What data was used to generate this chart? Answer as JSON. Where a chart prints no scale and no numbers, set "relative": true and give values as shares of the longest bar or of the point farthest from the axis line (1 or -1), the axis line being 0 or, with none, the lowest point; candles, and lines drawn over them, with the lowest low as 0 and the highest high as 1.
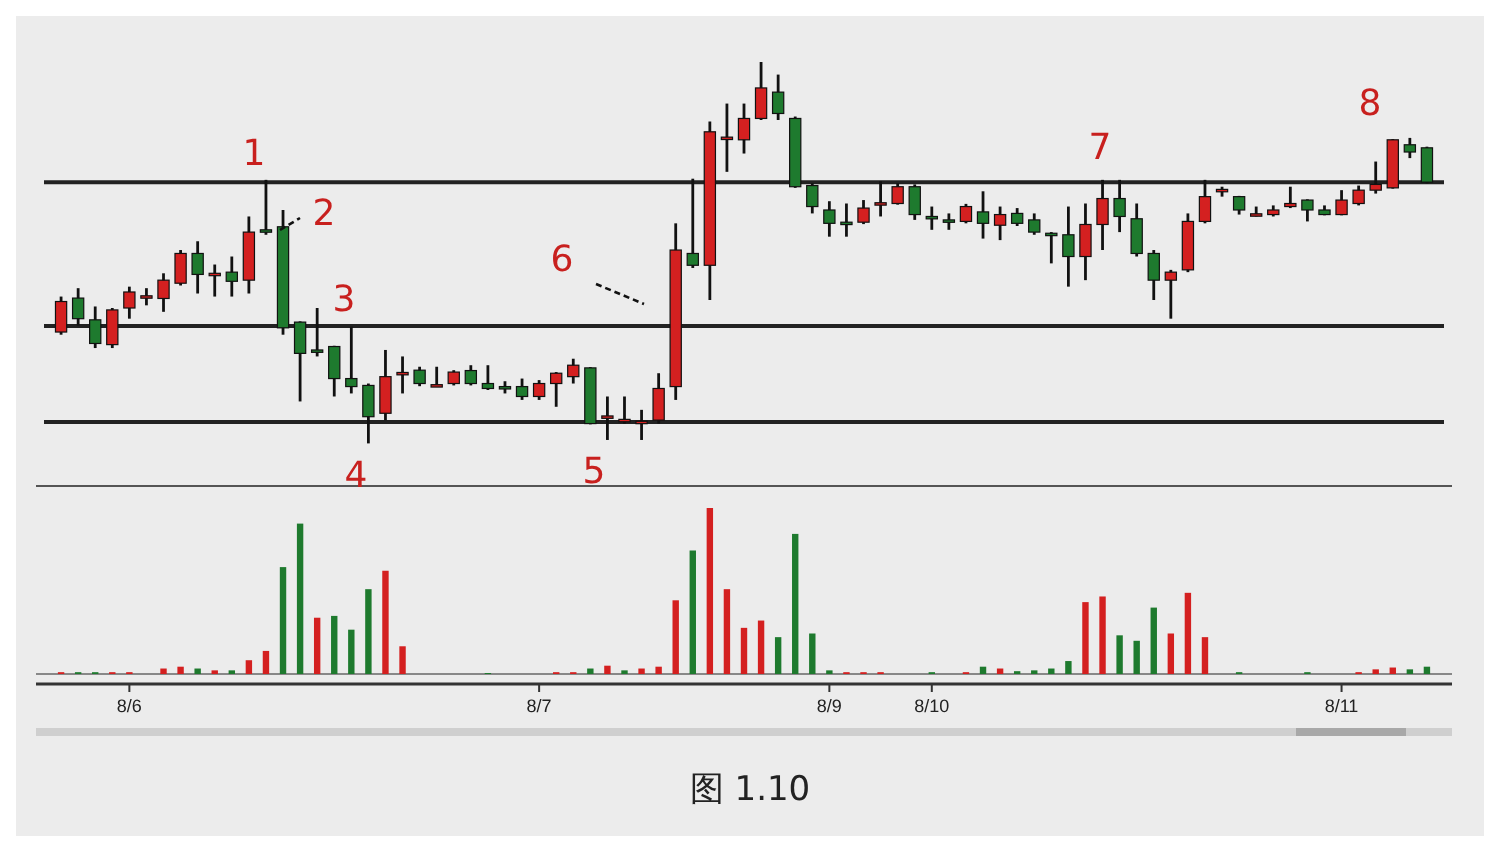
{
  "chart_data": [
    {
      "type": "candlestick",
      "relative": true,
      "tick_labels": false,
      "categories": [
        null,
        null,
        null,
        null,
        null,
        null,
        null,
        null,
        null,
        null,
        null,
        null,
        null,
        null,
        null,
        null,
        null,
        null,
        null,
        null,
        null,
        null,
        null,
        null,
        null,
        null,
        null,
        null,
        null,
        null,
        null,
        null,
        null,
        null,
        null,
        null,
        null,
        null,
        null,
        null,
        null,
        null,
        null,
        null,
        null,
        null,
        null,
        null,
        null,
        null,
        null,
        null,
        null,
        null,
        null,
        null,
        null,
        null,
        null,
        null,
        null,
        null,
        null,
        null,
        null,
        null,
        null,
        null,
        null,
        null,
        null,
        null,
        null,
        null,
        null,
        null,
        null,
        null,
        null,
        null,
        null
      ],
      "ohlc": [
        [
          0.292,
          0.385,
          0.285,
          0.372
        ],
        [
          0.381,
          0.407,
          0.309,
          0.327
        ],
        [
          0.324,
          0.359,
          0.25,
          0.262
        ],
        [
          0.259,
          0.355,
          0.25,
          0.35
        ],
        [
          0.355,
          0.411,
          0.327,
          0.397
        ],
        [
          0.385,
          0.407,
          0.362,
          0.387
        ],
        [
          0.38,
          0.446,
          0.345,
          0.428
        ],
        [
          0.42,
          0.507,
          0.414,
          0.498
        ],
        [
          0.498,
          0.53,
          0.393,
          0.443
        ],
        [
          0.443,
          0.469,
          0.385,
          0.446
        ],
        [
          0.449,
          0.49,
          0.385,
          0.425
        ],
        [
          0.428,
          0.595,
          0.393,
          0.554
        ],
        [
          0.56,
          0.691,
          0.547,
          0.554
        ],
        [
          0.568,
          0.612,
          0.285,
          0.303
        ],
        [
          0.318,
          0.32,
          0.11,
          0.236
        ],
        [
          0.245,
          0.355,
          0.228,
          0.243
        ],
        [
          0.254,
          0.256,
          0.123,
          0.17
        ],
        [
          0.17,
          0.306,
          0.131,
          0.149
        ],
        [
          0.152,
          0.157,
          0,
          0.07
        ],
        [
          0.079,
          0.245,
          0.061,
          0.175
        ],
        [
          0.184,
          0.228,
          0.131,
          0.186
        ],
        [
          0.192,
          0.201,
          0.15,
          0.157
        ],
        [
          0.152,
          0.201,
          0.149,
          0.154
        ],
        [
          0.157,
          0.192,
          0.152,
          0.187
        ],
        [
          0.191,
          0.205,
          0.152,
          0.157
        ],
        [
          0.157,
          0.205,
          0.14,
          0.144
        ],
        [
          0.149,
          0.163,
          0.131,
          0.147
        ],
        [
          0.149,
          0.17,
          0.114,
          0.123
        ],
        [
          0.123,
          0.166,
          0.114,
          0.157
        ],
        [
          0.157,
          0.187,
          0.096,
          0.184
        ],
        [
          0.175,
          0.222,
          0.157,
          0.205
        ],
        [
          0.198,
          0.2,
          0.05,
          0.052
        ],
        [
          0.067,
          0.123,
          0.009,
          0.072
        ],
        [
          0.061,
          0.123,
          0.052,
          0.063
        ],
        [
          0.056,
          0.088,
          0.009,
          0.058
        ],
        [
          0.061,
          0.184,
          0.052,
          0.144
        ],
        [
          0.149,
          0.577,
          0.114,
          0.507
        ],
        [
          0.498,
          0.694,
          0.46,
          0.467
        ],
        [
          0.467,
          0.844,
          0.376,
          0.817
        ],
        [
          0.801,
          0.891,
          0.712,
          0.803
        ],
        [
          0.796,
          0.891,
          0.76,
          0.852
        ],
        [
          0.852,
          1,
          0.848,
          0.932
        ],
        [
          0.921,
          0.967,
          0.848,
          0.865
        ],
        [
          0.852,
          0.857,
          0.67,
          0.673
        ],
        [
          0.676,
          0.682,
          0.603,
          0.621
        ],
        [
          0.612,
          0.635,
          0.542,
          0.577
        ],
        [
          0.58,
          0.629,
          0.542,
          0.578
        ],
        [
          0.58,
          0.638,
          0.575,
          0.617
        ],
        [
          0.629,
          0.687,
          0.595,
          0.631
        ],
        [
          0.629,
          0.682,
          0.626,
          0.673
        ],
        [
          0.673,
          0.679,
          0.586,
          0.6
        ],
        [
          0.595,
          0.621,
          0.56,
          0.593
        ],
        [
          0.586,
          0.603,
          0.56,
          0.584
        ],
        [
          0.582,
          0.628,
          0.577,
          0.621
        ],
        [
          0.607,
          0.661,
          0.537,
          0.577
        ],
        [
          0.572,
          0.621,
          0.533,
          0.6
        ],
        [
          0.603,
          0.617,
          0.57,
          0.577
        ],
        [
          0.586,
          0.603,
          0.547,
          0.554
        ],
        [
          0.551,
          0.554,
          0.472,
          0.549
        ],
        [
          0.547,
          0.621,
          0.411,
          0.49
        ],
        [
          0.49,
          0.629,
          0.428,
          0.574
        ],
        [
          0.574,
          0.691,
          0.507,
          0.642
        ],
        [
          0.642,
          0.691,
          0.554,
          0.595
        ],
        [
          0.589,
          0.629,
          0.49,
          0.498
        ],
        [
          0.498,
          0.507,
          0.376,
          0.428
        ],
        [
          0.428,
          0.455,
          0.327,
          0.449
        ],
        [
          0.455,
          0.603,
          0.449,
          0.582
        ],
        [
          0.582,
          0.691,
          0.577,
          0.647
        ],
        [
          0.664,
          0.673,
          0.647,
          0.666
        ],
        [
          0.647,
          0.649,
          0.6,
          0.612
        ],
        [
          0.6,
          0.621,
          0.595,
          0.602
        ],
        [
          0.6,
          0.624,
          0.595,
          0.612
        ],
        [
          0.621,
          0.673,
          0.617,
          0.629
        ],
        [
          0.638,
          0.64,
          0.582,
          0.612
        ],
        [
          0.612,
          0.624,
          0.598,
          0.6
        ],
        [
          0.6,
          0.664,
          0.598,
          0.638
        ],
        [
          0.629,
          0.676,
          0.624,
          0.664
        ],
        [
          0.664,
          0.739,
          0.655,
          0.679
        ],
        [
          0.67,
          0.798,
          0.668,
          0.796
        ],
        [
          0.783,
          0.801,
          0.748,
          0.764
        ],
        [
          0.775,
          0.778,
          0.682,
          0.685
        ]
      ],
      "colors": [
        "#d42020",
        "#1e7a2e",
        "#1e7a2e",
        "#d42020",
        "#d42020",
        "#d42020",
        "#d42020",
        "#d42020",
        "#1e7a2e",
        "#d42020",
        "#1e7a2e",
        "#d42020",
        "#1e7a2e",
        "#1e7a2e",
        "#1e7a2e",
        "#1e7a2e",
        "#1e7a2e",
        "#1e7a2e",
        "#1e7a2e",
        "#d42020",
        "#d42020",
        "#1e7a2e",
        "#d42020",
        "#d42020",
        "#1e7a2e",
        "#1e7a2e",
        "#1e7a2e",
        "#1e7a2e",
        "#d42020",
        "#d42020",
        "#d42020",
        "#1e7a2e",
        "#d42020",
        "#d42020",
        "#d42020",
        "#d42020",
        "#d42020",
        "#1e7a2e",
        "#d42020",
        "#d42020",
        "#d42020",
        "#d42020",
        "#1e7a2e",
        "#1e7a2e",
        "#1e7a2e",
        "#1e7a2e",
        "#1e7a2e",
        "#d42020",
        "#d42020",
        "#d42020",
        "#1e7a2e",
        "#1e7a2e",
        "#1e7a2e",
        "#d42020",
        "#1e7a2e",
        "#d42020",
        "#1e7a2e",
        "#1e7a2e",
        "#1e7a2e",
        "#1e7a2e",
        "#d42020",
        "#d42020",
        "#1e7a2e",
        "#1e7a2e",
        "#1e7a2e",
        "#d42020",
        "#d42020",
        "#d42020",
        "#d42020",
        "#1e7a2e",
        "#d42020",
        "#d42020",
        "#d42020",
        "#1e7a2e",
        "#1e7a2e",
        "#d42020",
        "#d42020",
        "#d42020",
        "#d42020",
        "#1e7a2e",
        "#1e7a2e"
      ],
      "ref_lines": [
        {
          "axis": "y",
          "value": 0.685,
          "color": "#222222"
        },
        {
          "axis": "y",
          "value": 0.308,
          "color": "#222222"
        },
        {
          "axis": "y",
          "value": 0.056,
          "color": "#222222"
        }
      ],
      "annotations": [
        "1",
        "2",
        "3",
        "4",
        "5",
        "6",
        "7",
        "8",
        "图 1.10"
      ]
    },
    {
      "type": "bar",
      "relative": true,
      "tick_labels": "x",
      "categories": [
        null,
        null,
        null,
        null,
        "8/6",
        null,
        null,
        null,
        null,
        null,
        null,
        null,
        null,
        null,
        null,
        null,
        null,
        null,
        null,
        null,
        null,
        null,
        null,
        null,
        null,
        null,
        null,
        null,
        "8/7",
        null,
        null,
        null,
        null,
        null,
        null,
        null,
        null,
        null,
        null,
        null,
        null,
        null,
        null,
        null,
        null,
        "8/9",
        null,
        null,
        null,
        null,
        null,
        "8/10",
        null,
        null,
        null,
        null,
        null,
        null,
        null,
        null,
        null,
        null,
        null,
        null,
        null,
        null,
        null,
        null,
        null,
        null,
        null,
        null,
        null,
        null,
        null,
        "8/11",
        null,
        null,
        null,
        null,
        null
      ],
      "values": [
        0.011,
        0.011,
        0.011,
        0.011,
        0.011,
        0,
        0.033,
        0.044,
        0.033,
        0.022,
        0.022,
        0.083,
        0.139,
        0.644,
        0.906,
        0.339,
        0.35,
        0.267,
        0.511,
        0.622,
        0.167,
        0,
        0,
        0,
        0,
        0.006,
        0,
        0,
        0,
        0.011,
        0.011,
        0.033,
        0.05,
        0.022,
        0.033,
        0.044,
        0.444,
        0.744,
        1,
        0.511,
        0.278,
        0.322,
        0.222,
        0.844,
        0.244,
        0.022,
        0.011,
        0.011,
        0.011,
        0,
        0,
        0.011,
        0,
        0.011,
        0.044,
        0.033,
        0.017,
        0.022,
        0.033,
        0.078,
        0.433,
        0.467,
        0.233,
        0.2,
        0.4,
        0.244,
        0.489,
        0.222,
        0,
        0.011,
        0,
        0,
        0,
        0.011,
        0,
        0,
        0.011,
        0.028,
        0.039,
        0.028,
        0.044
      ],
      "colors": [
        "#d42020",
        "#1e7a2e",
        "#1e7a2e",
        "#d42020",
        "#d42020",
        "#d42020",
        "#d42020",
        "#d42020",
        "#1e7a2e",
        "#d42020",
        "#1e7a2e",
        "#d42020",
        "#d42020",
        "#1e7a2e",
        "#1e7a2e",
        "#d42020",
        "#1e7a2e",
        "#1e7a2e",
        "#1e7a2e",
        "#d42020",
        "#d42020",
        "#d42020",
        "#d42020",
        "#d42020",
        "#d42020",
        "#1e7a2e",
        "#d42020",
        "#d42020",
        "#d42020",
        "#d42020",
        "#d42020",
        "#1e7a2e",
        "#d42020",
        "#1e7a2e",
        "#d42020",
        "#d42020",
        "#d42020",
        "#1e7a2e",
        "#d42020",
        "#d42020",
        "#d42020",
        "#d42020",
        "#1e7a2e",
        "#1e7a2e",
        "#1e7a2e",
        "#1e7a2e",
        "#d42020",
        "#d42020",
        "#d42020",
        "#d42020",
        "#d42020",
        "#1e7a2e",
        "#d42020",
        "#d42020",
        "#1e7a2e",
        "#d42020",
        "#1e7a2e",
        "#1e7a2e",
        "#1e7a2e",
        "#1e7a2e",
        "#d42020",
        "#d42020",
        "#1e7a2e",
        "#1e7a2e",
        "#1e7a2e",
        "#d42020",
        "#d42020",
        "#d42020",
        "#d42020",
        "#1e7a2e",
        "#d42020",
        "#d42020",
        "#d42020",
        "#1e7a2e",
        "#d42020",
        "#d42020",
        "#d42020",
        "#d42020",
        "#d42020",
        "#1e7a2e",
        "#1e7a2e"
      ]
    }
  ]
}
